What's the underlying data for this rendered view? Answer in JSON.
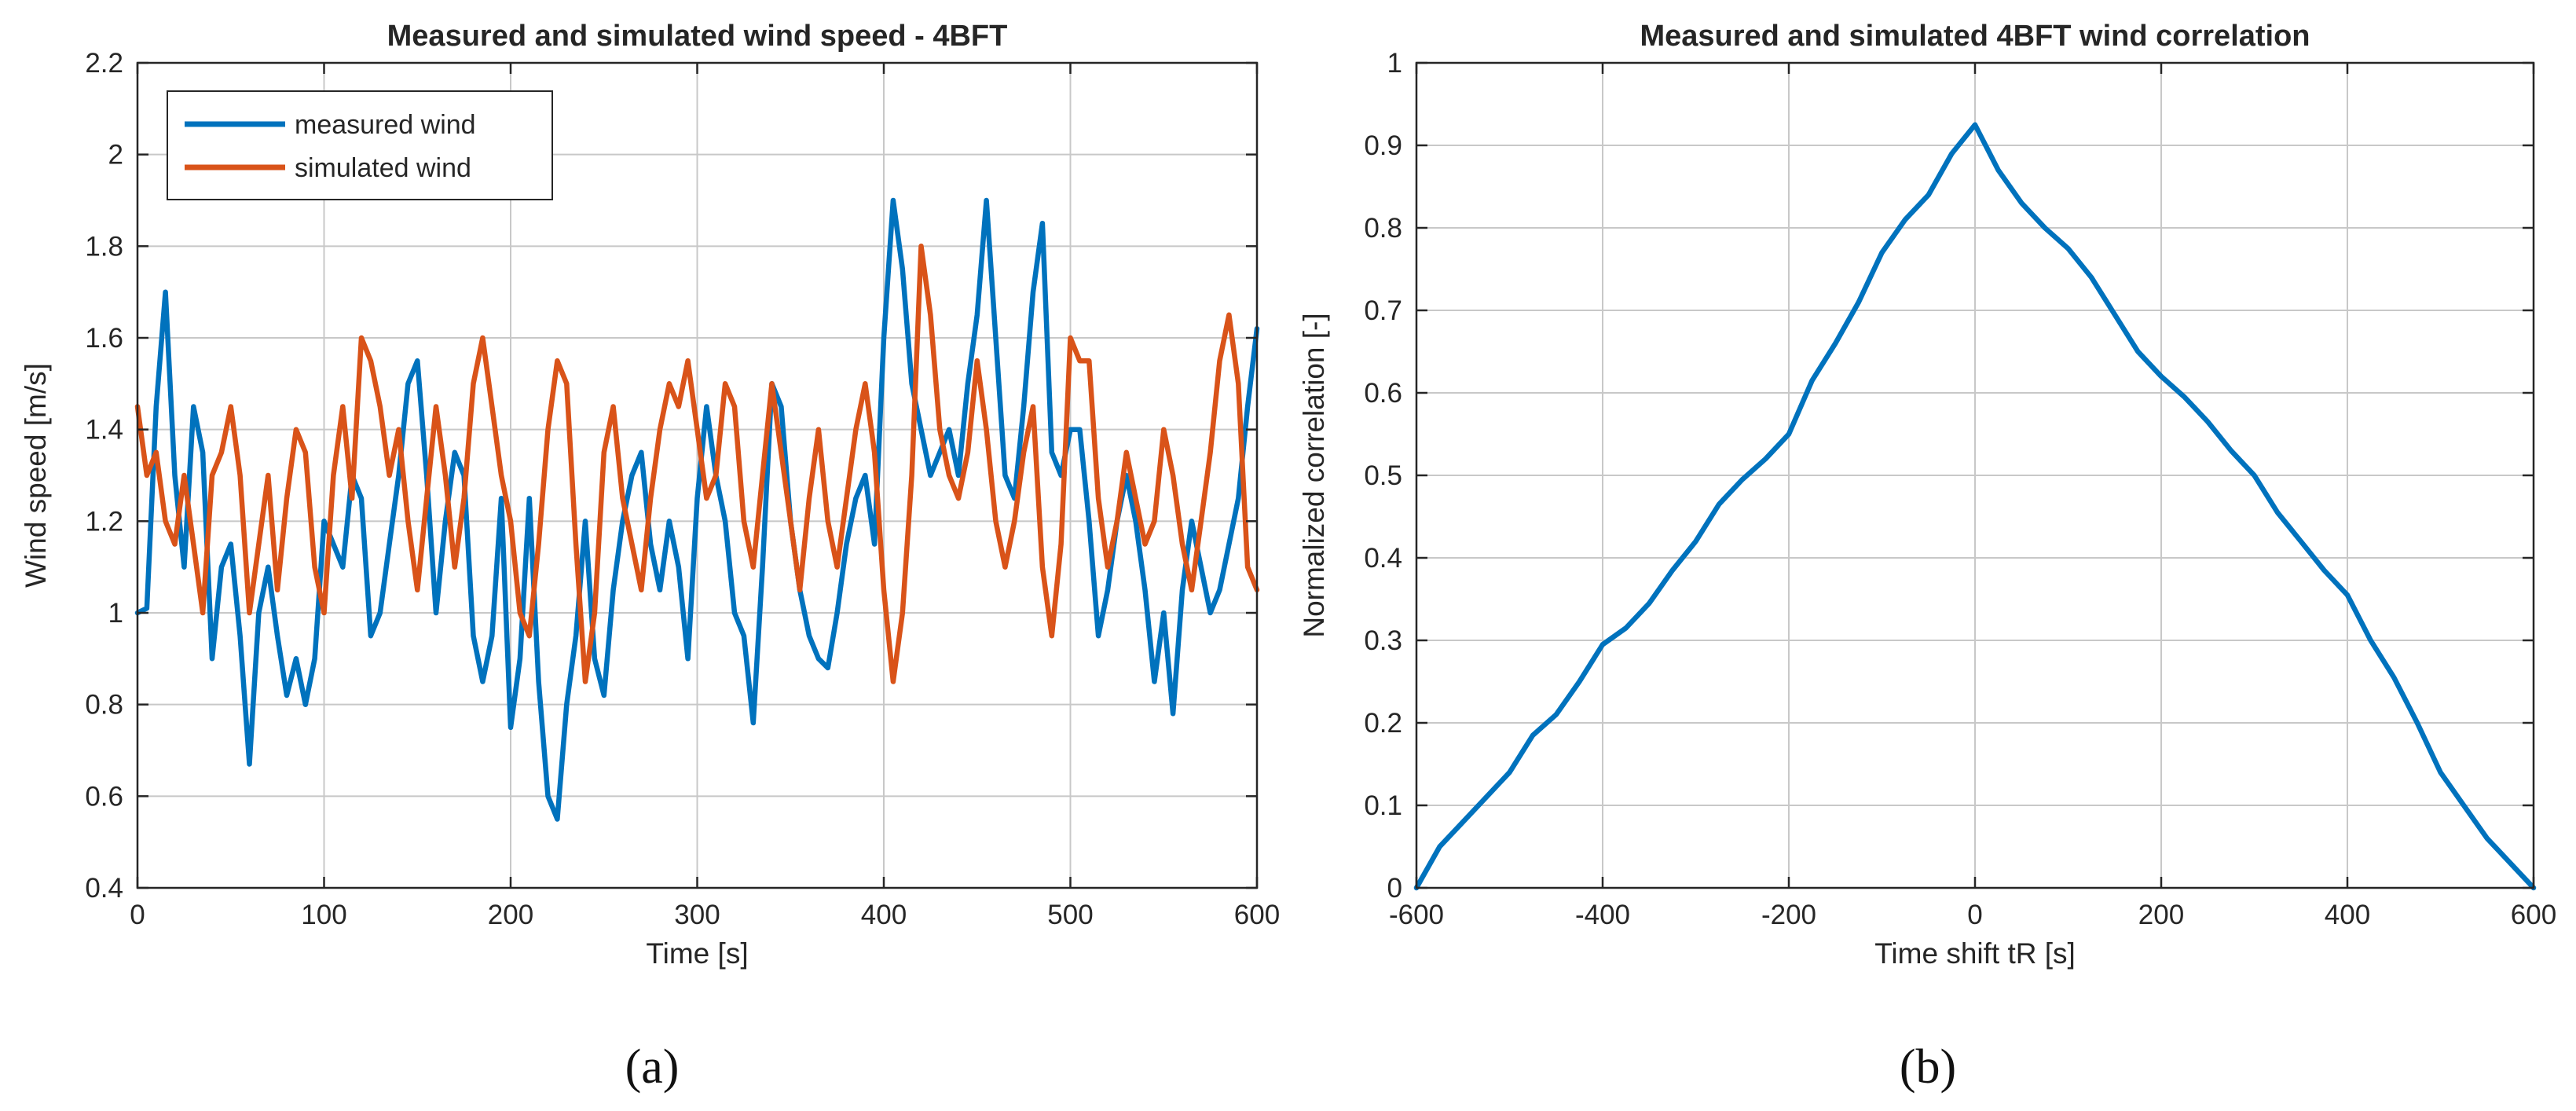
{
  "chart_data": [
    {
      "type": "line",
      "title": "Measured and simulated wind speed - 4BFT",
      "xlabel": "Time [s]",
      "ylabel": "Wind speed [m/s]",
      "xlim": [
        0,
        600
      ],
      "ylim": [
        0.4,
        2.2
      ],
      "xticks": [
        0,
        100,
        200,
        300,
        400,
        500,
        600
      ],
      "yticks": [
        0.4,
        0.6,
        0.8,
        1,
        1.2,
        1.4,
        1.6,
        1.8,
        2,
        2.2
      ],
      "ytick_labels": [
        "0.4",
        "0.6",
        "0.8",
        "1",
        "1.2",
        "1.4",
        "1.6",
        "1.8",
        "2",
        "2.2"
      ],
      "grid": true,
      "legend_position": "top-left",
      "panel_label": "(a)",
      "x": [
        0,
        5,
        10,
        15,
        20,
        25,
        30,
        35,
        40,
        45,
        50,
        55,
        60,
        65,
        70,
        75,
        80,
        85,
        90,
        95,
        100,
        105,
        110,
        115,
        120,
        125,
        130,
        135,
        140,
        145,
        150,
        155,
        160,
        165,
        170,
        175,
        180,
        185,
        190,
        195,
        200,
        205,
        210,
        215,
        220,
        225,
        230,
        235,
        240,
        245,
        250,
        255,
        260,
        265,
        270,
        275,
        280,
        285,
        290,
        295,
        300,
        305,
        310,
        315,
        320,
        325,
        330,
        335,
        340,
        345,
        350,
        355,
        360,
        365,
        370,
        375,
        380,
        385,
        390,
        395,
        400,
        405,
        410,
        415,
        420,
        425,
        430,
        435,
        440,
        445,
        450,
        455,
        460,
        465,
        470,
        475,
        480,
        485,
        490,
        495,
        500,
        505,
        510,
        515,
        520,
        525,
        530,
        535,
        540,
        545,
        550,
        555,
        560,
        565,
        570,
        575,
        580,
        585,
        590,
        595,
        600
      ],
      "series": [
        {
          "name": "measured wind",
          "color": "#0072BD",
          "values": [
            1.0,
            1.01,
            1.45,
            1.7,
            1.3,
            1.1,
            1.45,
            1.35,
            0.9,
            1.1,
            1.15,
            0.95,
            0.67,
            1.0,
            1.1,
            0.95,
            0.82,
            0.9,
            0.8,
            0.9,
            1.2,
            1.15,
            1.1,
            1.3,
            1.25,
            0.95,
            1.0,
            1.15,
            1.3,
            1.5,
            1.55,
            1.3,
            1.0,
            1.2,
            1.35,
            1.3,
            0.95,
            0.85,
            0.95,
            1.25,
            0.75,
            0.9,
            1.25,
            0.85,
            0.6,
            0.55,
            0.8,
            0.95,
            1.2,
            0.9,
            0.82,
            1.05,
            1.2,
            1.3,
            1.35,
            1.15,
            1.05,
            1.2,
            1.1,
            0.9,
            1.25,
            1.45,
            1.3,
            1.2,
            1.0,
            0.95,
            0.76,
            1.1,
            1.5,
            1.45,
            1.2,
            1.05,
            0.95,
            0.9,
            0.88,
            1.0,
            1.15,
            1.25,
            1.3,
            1.15,
            1.6,
            1.9,
            1.75,
            1.5,
            1.4,
            1.3,
            1.35,
            1.4,
            1.3,
            1.5,
            1.65,
            1.9,
            1.6,
            1.3,
            1.25,
            1.45,
            1.7,
            1.85,
            1.35,
            1.3,
            1.4,
            1.4,
            1.2,
            0.95,
            1.05,
            1.2,
            1.3,
            1.2,
            1.05,
            0.85,
            1.0,
            0.78,
            1.05,
            1.2,
            1.1,
            1.0,
            1.05,
            1.15,
            1.25,
            1.45,
            1.62
          ]
        },
        {
          "name": "simulated wind",
          "color": "#D95319",
          "values": [
            1.45,
            1.3,
            1.35,
            1.2,
            1.15,
            1.3,
            1.15,
            1.0,
            1.3,
            1.35,
            1.45,
            1.3,
            1.0,
            1.15,
            1.3,
            1.05,
            1.25,
            1.4,
            1.35,
            1.1,
            1.0,
            1.3,
            1.45,
            1.25,
            1.6,
            1.55,
            1.45,
            1.3,
            1.4,
            1.2,
            1.05,
            1.25,
            1.45,
            1.3,
            1.1,
            1.25,
            1.5,
            1.6,
            1.45,
            1.3,
            1.2,
            1.0,
            0.95,
            1.15,
            1.4,
            1.55,
            1.5,
            1.15,
            0.85,
            1.0,
            1.35,
            1.45,
            1.25,
            1.15,
            1.05,
            1.25,
            1.4,
            1.5,
            1.45,
            1.55,
            1.4,
            1.25,
            1.3,
            1.5,
            1.45,
            1.2,
            1.1,
            1.3,
            1.5,
            1.35,
            1.2,
            1.05,
            1.25,
            1.4,
            1.2,
            1.1,
            1.25,
            1.4,
            1.5,
            1.35,
            1.05,
            0.85,
            1.0,
            1.3,
            1.8,
            1.65,
            1.4,
            1.3,
            1.25,
            1.35,
            1.55,
            1.4,
            1.2,
            1.1,
            1.2,
            1.35,
            1.45,
            1.1,
            0.95,
            1.15,
            1.6,
            1.55,
            1.55,
            1.25,
            1.1,
            1.2,
            1.35,
            1.25,
            1.15,
            1.2,
            1.4,
            1.3,
            1.15,
            1.05,
            1.2,
            1.35,
            1.55,
            1.65,
            1.5,
            1.1,
            1.05
          ]
        }
      ]
    },
    {
      "type": "line",
      "title": "Measured and simulated 4BFT wind correlation",
      "xlabel": "Time shift tR [s]",
      "ylabel": "Normalized correlation [-]",
      "xlim": [
        -600,
        600
      ],
      "ylim": [
        0,
        1
      ],
      "xticks": [
        -600,
        -400,
        -200,
        0,
        200,
        400,
        600
      ],
      "yticks": [
        0,
        0.1,
        0.2,
        0.3,
        0.4,
        0.5,
        0.6,
        0.7,
        0.8,
        0.9,
        1
      ],
      "ytick_labels": [
        "0",
        "0.1",
        "0.2",
        "0.3",
        "0.4",
        "0.5",
        "0.6",
        "0.7",
        "0.8",
        "0.9",
        "1"
      ],
      "grid": true,
      "panel_label": "(b)",
      "x": [
        -600,
        -575,
        -550,
        -525,
        -500,
        -475,
        -450,
        -425,
        -400,
        -375,
        -350,
        -325,
        -300,
        -275,
        -250,
        -225,
        -200,
        -175,
        -150,
        -125,
        -100,
        -75,
        -50,
        -25,
        0,
        25,
        50,
        75,
        100,
        125,
        150,
        175,
        200,
        225,
        250,
        275,
        300,
        325,
        350,
        375,
        400,
        425,
        450,
        475,
        500,
        525,
        550,
        575,
        600
      ],
      "series": [
        {
          "name": "correlation",
          "color": "#0072BD",
          "values": [
            0.0,
            0.05,
            0.08,
            0.11,
            0.14,
            0.185,
            0.21,
            0.25,
            0.295,
            0.315,
            0.345,
            0.385,
            0.42,
            0.465,
            0.495,
            0.52,
            0.55,
            0.615,
            0.66,
            0.71,
            0.77,
            0.81,
            0.84,
            0.89,
            0.925,
            0.87,
            0.83,
            0.8,
            0.775,
            0.74,
            0.695,
            0.65,
            0.62,
            0.595,
            0.565,
            0.53,
            0.5,
            0.455,
            0.42,
            0.385,
            0.355,
            0.3,
            0.255,
            0.2,
            0.14,
            0.1,
            0.06,
            0.03,
            0.0
          ]
        }
      ]
    }
  ]
}
